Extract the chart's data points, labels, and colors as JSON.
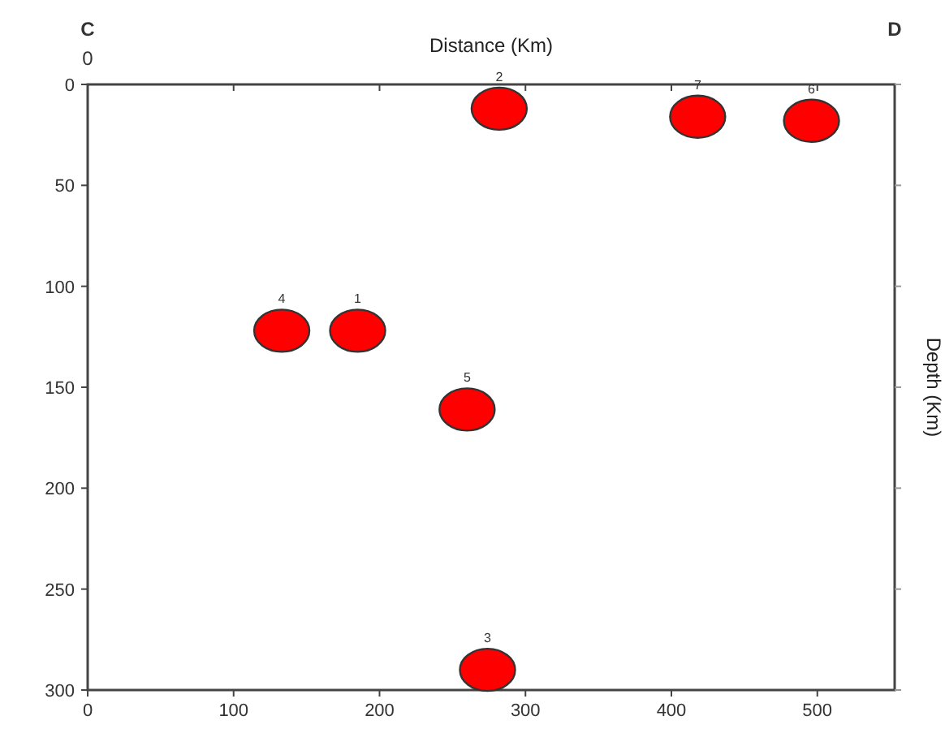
{
  "chart_data": {
    "type": "scatter",
    "xlabel": "Distance (Km)",
    "ylabel": "Depth (Km)",
    "x": [
      185,
      282,
      274,
      133,
      260,
      496,
      418
    ],
    "values": [
      122,
      12,
      290,
      122,
      161,
      18,
      16
    ],
    "color": "#ff0000",
    "marker": "circle",
    "xlim": [
      0,
      553
    ],
    "xticks": [
      0,
      100,
      200,
      300,
      400,
      500
    ],
    "ylim": [
      300,
      0
    ],
    "yticks": [
      0,
      50,
      100,
      150,
      200,
      250,
      300
    ],
    "annotations": [
      "C",
      "D",
      "0",
      {
        "text": "1",
        "x": 185,
        "y": 122
      },
      {
        "text": "2",
        "x": 282,
        "y": 12
      },
      {
        "text": "3",
        "x": 274,
        "y": 290
      },
      {
        "text": "4",
        "x": 133,
        "y": 122
      },
      {
        "text": "5",
        "x": 260,
        "y": 161
      },
      {
        "text": "6",
        "x": 496,
        "y": 18
      },
      {
        "text": "7",
        "x": 418,
        "y": 16
      }
    ]
  }
}
